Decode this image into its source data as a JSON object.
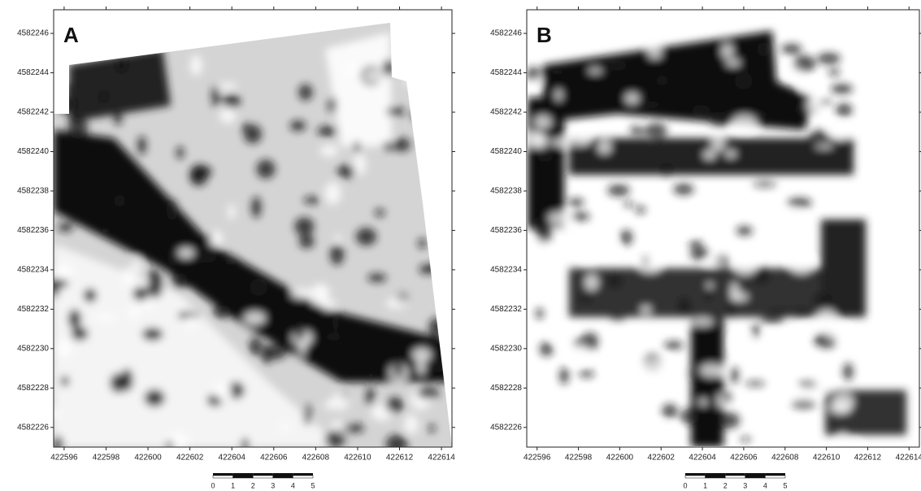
{
  "chart_data": [
    {
      "type": "raster",
      "label": "A",
      "xlim": [
        422595.5,
        422614.5
      ],
      "ylim": [
        4582225,
        4582247.2
      ],
      "xticks": [
        422596,
        422598,
        422600,
        422602,
        422604,
        422606,
        422608,
        422610,
        422612,
        422614
      ],
      "yticks": [
        4582226,
        4582228,
        4582230,
        4582232,
        4582234,
        4582236,
        4582238,
        4582240,
        4582242,
        4582244,
        4582246
      ],
      "scale_ticks": [
        0,
        1,
        2,
        3,
        4,
        5
      ]
    },
    {
      "type": "raster",
      "label": "B",
      "xlim": [
        422595.5,
        422614.5
      ],
      "ylim": [
        4582225,
        4582247.2
      ],
      "xticks": [
        422596,
        422598,
        422600,
        422602,
        422604,
        422606,
        422608,
        422610,
        422612,
        422614
      ],
      "yticks": [
        4582226,
        4582228,
        4582230,
        4582232,
        4582234,
        4582236,
        4582238,
        4582240,
        4582242,
        4582244,
        4582246
      ],
      "scale_ticks": [
        0,
        1,
        2,
        3,
        4,
        5
      ]
    }
  ]
}
